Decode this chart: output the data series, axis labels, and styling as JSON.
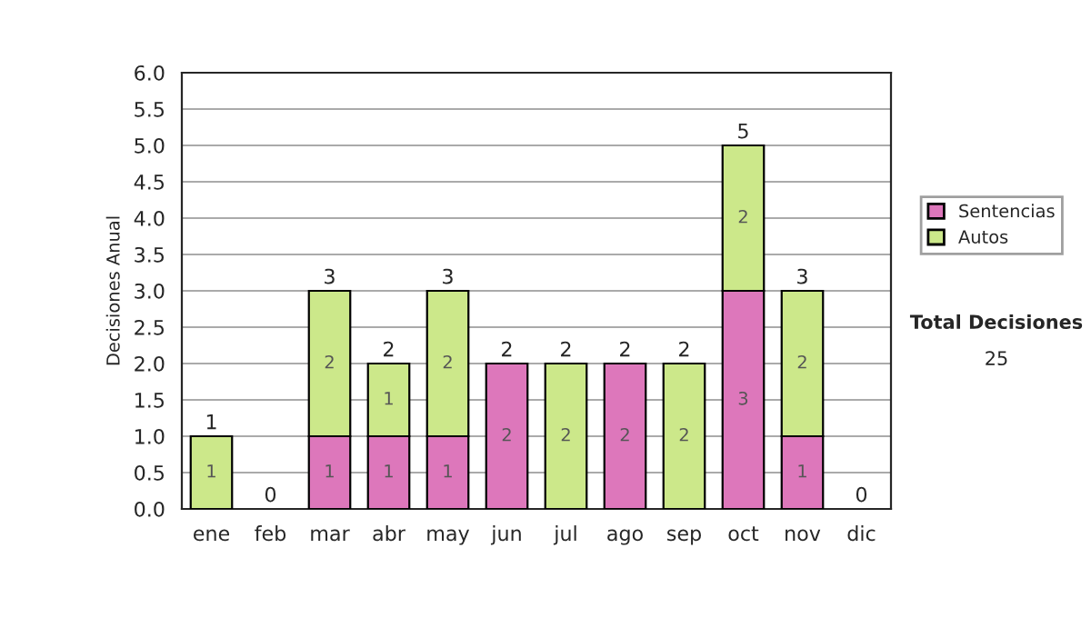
{
  "chart_data": {
    "type": "bar",
    "stacked": true,
    "ylabel": "Decisiones Anual",
    "categories": [
      "ene",
      "feb",
      "mar",
      "abr",
      "may",
      "jun",
      "jul",
      "ago",
      "sep",
      "oct",
      "nov",
      "dic"
    ],
    "series": [
      {
        "name": "Sentencias",
        "color": "#dd77bb",
        "values": [
          0,
          0,
          1,
          1,
          1,
          2,
          0,
          2,
          0,
          3,
          1,
          0
        ],
        "value_labels": [
          null,
          null,
          "1",
          "1",
          "1",
          "2",
          null,
          "2",
          null,
          "3",
          "1",
          null
        ]
      },
      {
        "name": "Autos",
        "color": "#cce88a",
        "values": [
          1,
          0,
          2,
          1,
          2,
          0,
          2,
          0,
          2,
          2,
          2,
          0
        ],
        "value_labels": [
          "1",
          null,
          "2",
          "1",
          "2",
          null,
          "2",
          null,
          "2",
          "2",
          "2",
          null
        ]
      }
    ],
    "totals": [
      "1",
      "0",
      "3",
      "2",
      "3",
      "2",
      "2",
      "2",
      "2",
      "5",
      "3",
      "0"
    ],
    "ylim": [
      0,
      6
    ],
    "yticks": [
      {
        "value": 0,
        "label": "0.0"
      },
      {
        "value": 0.5,
        "label": "0.5"
      },
      {
        "value": 1,
        "label": "1.0"
      },
      {
        "value": 1.5,
        "label": "1.5"
      },
      {
        "value": 2,
        "label": "2.0"
      },
      {
        "value": 2.5,
        "label": "2.5"
      },
      {
        "value": 3,
        "label": "3.0"
      },
      {
        "value": 3.5,
        "label": "3.5"
      },
      {
        "value": 4,
        "label": "4.0"
      },
      {
        "value": 4.5,
        "label": "4.5"
      },
      {
        "value": 5,
        "label": "5.0"
      },
      {
        "value": 5.5,
        "label": "5.5"
      },
      {
        "value": 6,
        "label": "6.0"
      }
    ],
    "grid": "y",
    "legend": "right",
    "annotations": [
      "Total Decisiones",
      "25"
    ]
  }
}
